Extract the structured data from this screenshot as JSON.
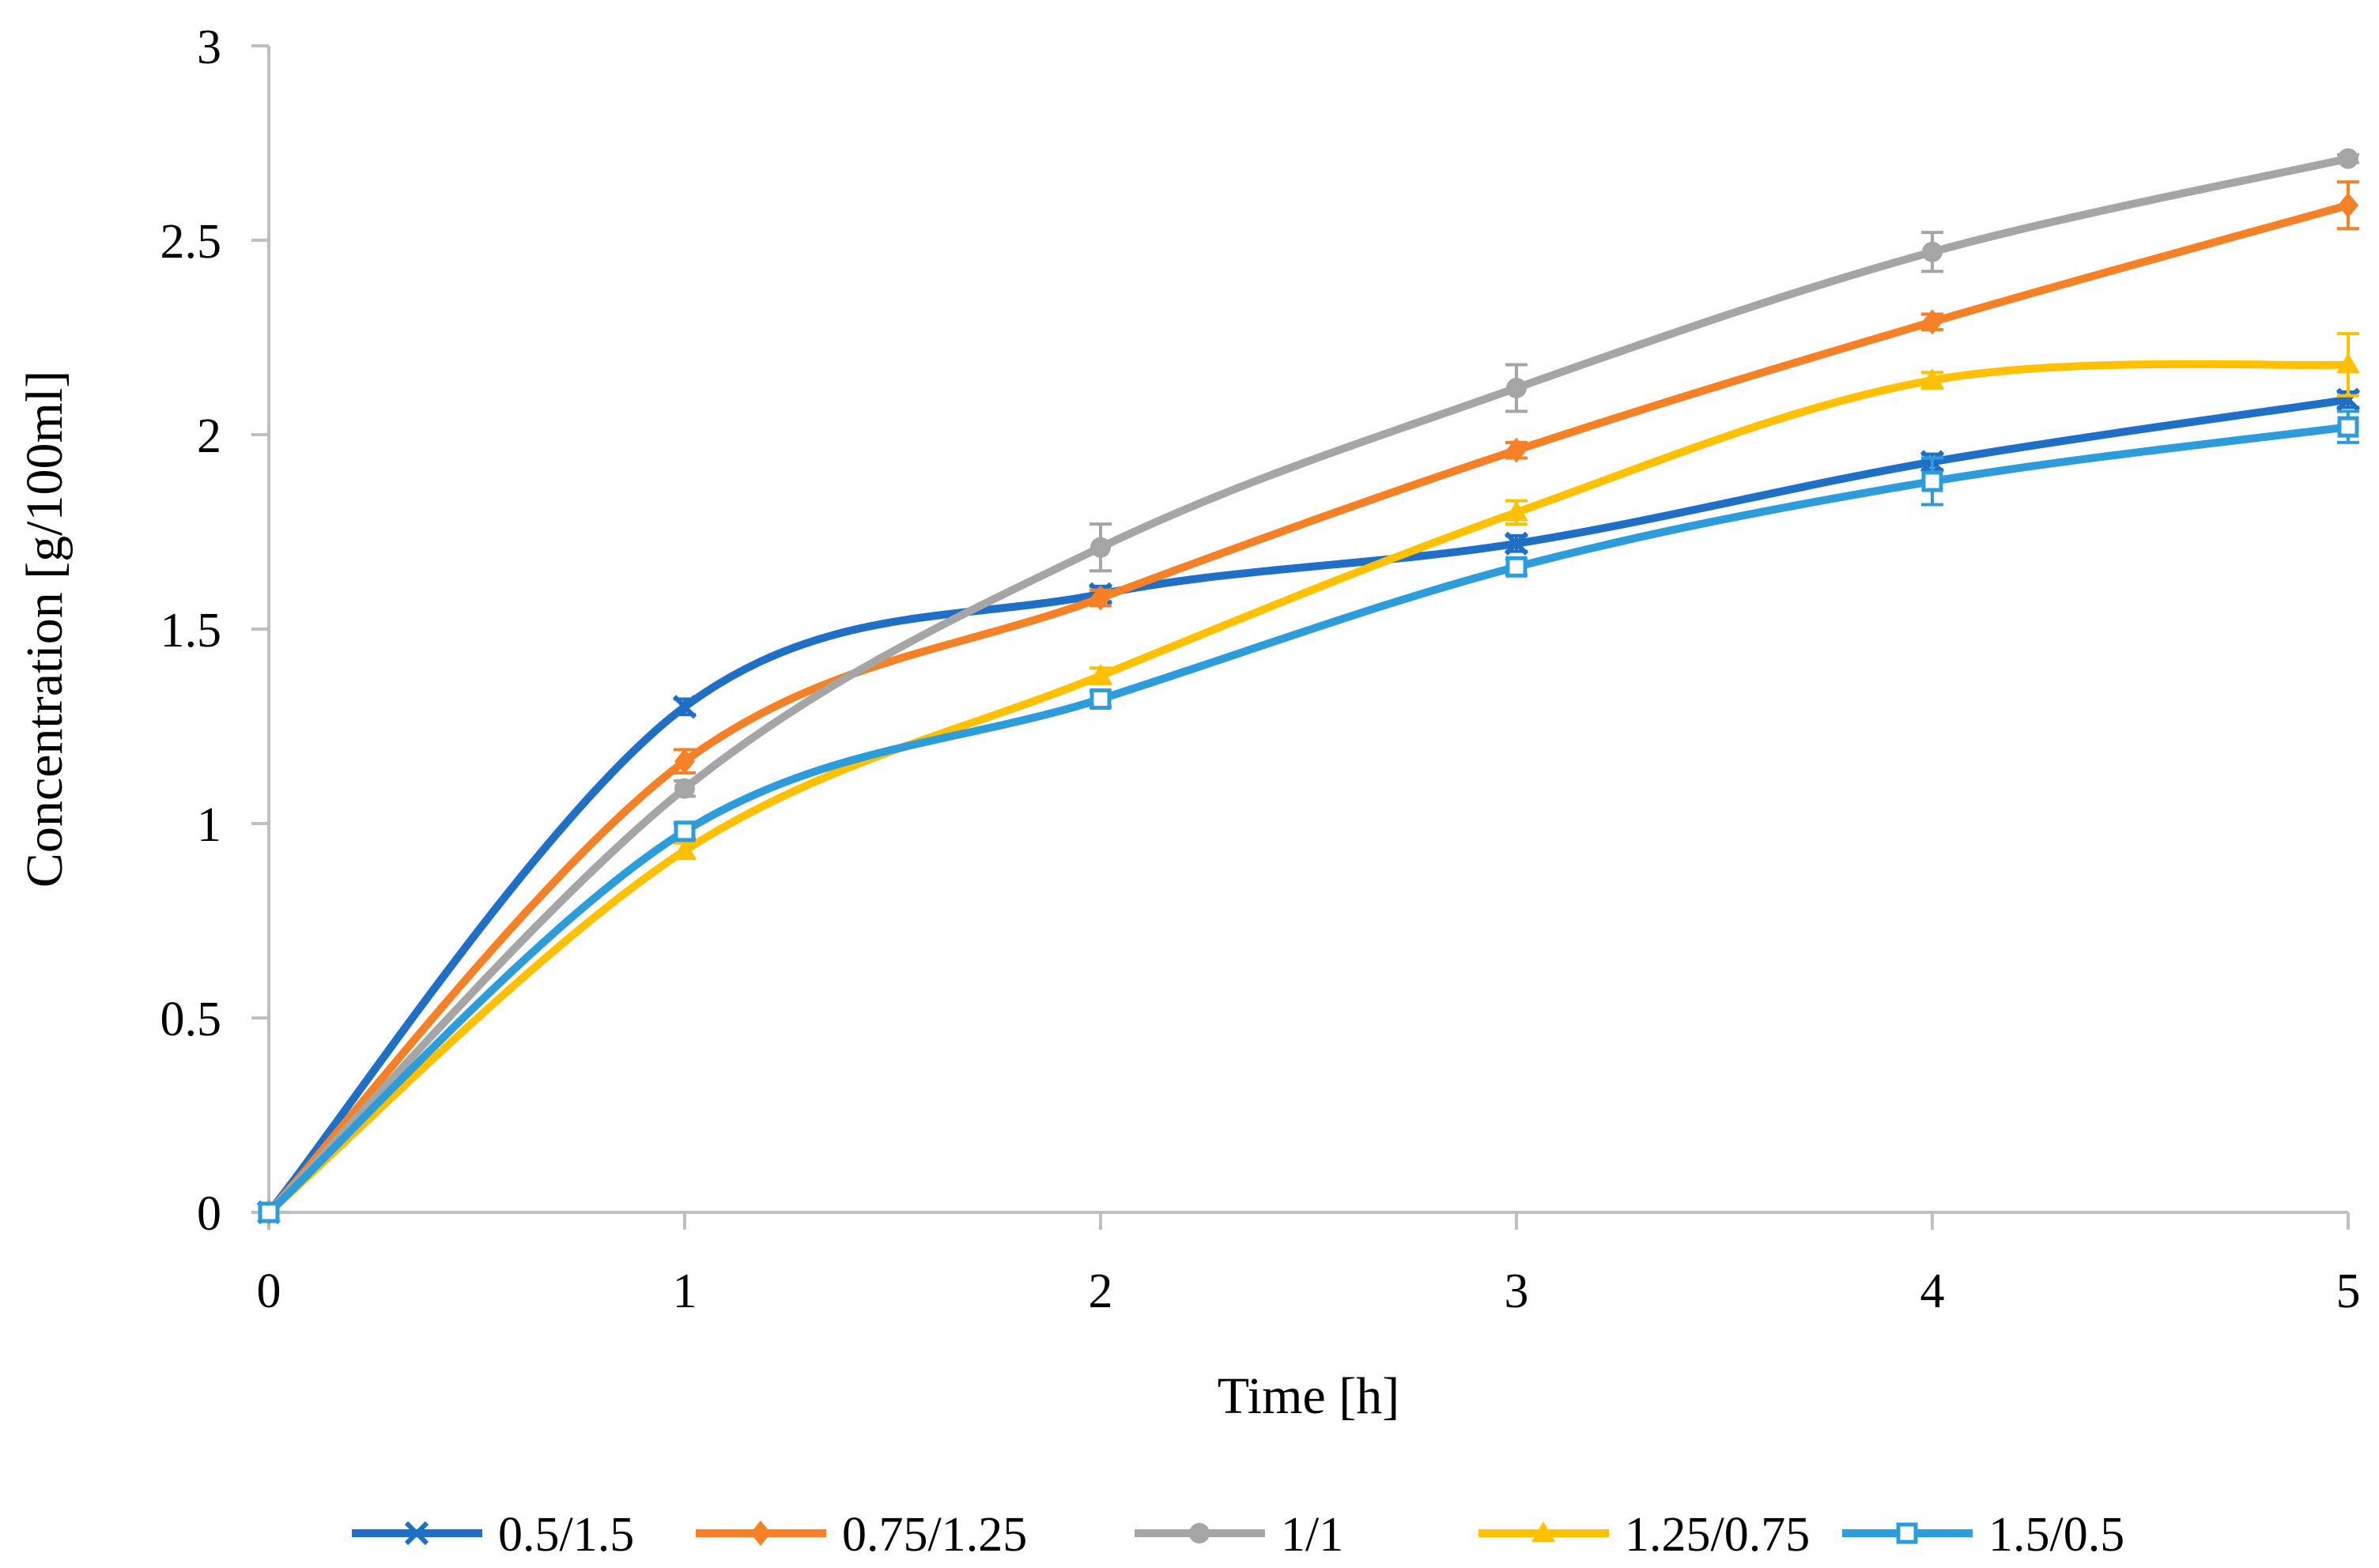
{
  "chart_data": {
    "type": "line",
    "title": "",
    "xlabel": "Time [h]",
    "ylabel": "Concentration  [g/100ml]",
    "x": [
      0,
      1,
      2,
      3,
      4,
      5
    ],
    "xlim": [
      0,
      5
    ],
    "ylim": [
      0,
      3
    ],
    "xticks": [
      "0",
      "1",
      "2",
      "3",
      "4",
      "5"
    ],
    "yticks": [
      "0",
      "0.5",
      "1",
      "1.5",
      "2",
      "2.5",
      "3"
    ],
    "grid": false,
    "legend_position": "bottom",
    "series": [
      {
        "name": "0.5/1.5",
        "color": "#1F6FC6",
        "marker": "x",
        "values": [
          0,
          1.3,
          1.59,
          1.72,
          1.93,
          2.09
        ],
        "errors": [
          0,
          0.02,
          0.02,
          0.02,
          0.02,
          0.02
        ]
      },
      {
        "name": "0.75/1.25",
        "color": "#F58025",
        "marker": "diamond",
        "values": [
          0,
          1.16,
          1.58,
          1.96,
          2.29,
          2.59
        ],
        "errors": [
          0,
          0.03,
          0.02,
          0.02,
          0.02,
          0.06
        ]
      },
      {
        "name": "1/1",
        "color": "#A5A5A5",
        "marker": "circle",
        "values": [
          0,
          1.09,
          1.71,
          2.12,
          2.47,
          2.71
        ],
        "errors": [
          0,
          0.02,
          0.06,
          0.06,
          0.05,
          0.01
        ]
      },
      {
        "name": "1.25/0.75",
        "color": "#FFC000",
        "marker": "triangle",
        "values": [
          0,
          0.93,
          1.38,
          1.8,
          2.14,
          2.18
        ],
        "errors": [
          0,
          0.02,
          0.02,
          0.03,
          0.02,
          0.08
        ]
      },
      {
        "name": "1.5/0.5",
        "color": "#2D9CDB",
        "marker": "square",
        "values": [
          0,
          0.98,
          1.32,
          1.66,
          1.88,
          2.02
        ],
        "errors": [
          0,
          0.02,
          0.02,
          0.02,
          0.06,
          0.04
        ]
      }
    ]
  }
}
